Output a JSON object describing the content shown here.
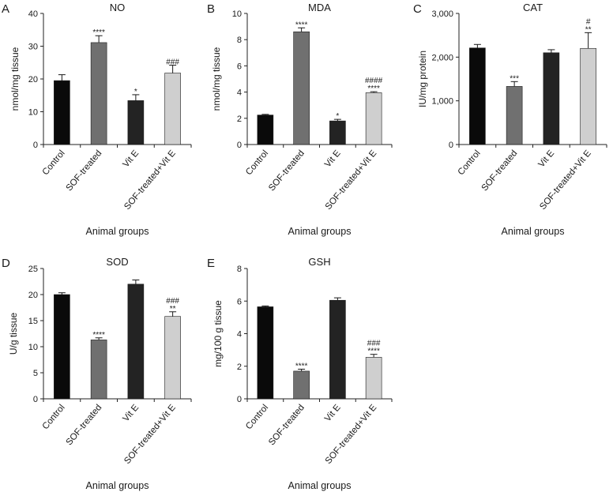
{
  "figure": {
    "x_axis_title": "Animal groups",
    "categories": [
      "Control",
      "SOF-treated",
      "Vit E",
      "SOF-treated+Vit E"
    ],
    "bar_colors": [
      "#0a0a0a",
      "#707070",
      "#232323",
      "#cfcfcf"
    ]
  },
  "chart_data": [
    {
      "type": "bar",
      "panel": "A",
      "title": "NO",
      "ylabel": "nmol/mg tissue",
      "xlabel": "Animal groups",
      "categories": [
        "Control",
        "SOF-treated",
        "Vit E",
        "SOF-treated+Vit E"
      ],
      "values": [
        19.5,
        31.1,
        13.4,
        21.8
      ],
      "errors": [
        1.8,
        2.1,
        1.8,
        2.4
      ],
      "ylim": [
        0,
        40
      ],
      "yticks": [
        0,
        10,
        20,
        30,
        40
      ],
      "ytick_labels": [
        "0",
        "10",
        "20",
        "30",
        "40"
      ],
      "significance": [
        [],
        [
          "****"
        ],
        [
          "*"
        ],
        [
          "###"
        ]
      ]
    },
    {
      "type": "bar",
      "panel": "B",
      "title": "MDA",
      "ylabel": "nmol/mg tissue",
      "xlabel": "Animal groups",
      "categories": [
        "Control",
        "SOF-treated",
        "Vit E",
        "SOF-treated+Vit E"
      ],
      "values": [
        2.25,
        8.6,
        1.8,
        3.95
      ],
      "errors": [
        0.05,
        0.3,
        0.12,
        0.08
      ],
      "ylim": [
        0,
        10
      ],
      "yticks": [
        0,
        2,
        4,
        6,
        8,
        10
      ],
      "ytick_labels": [
        "0",
        "2",
        "4",
        "6",
        "8",
        "10"
      ],
      "significance": [
        [],
        [
          "****"
        ],
        [
          "*"
        ],
        [
          "####",
          "****"
        ]
      ]
    },
    {
      "type": "bar",
      "panel": "C",
      "title": "CAT",
      "ylabel": "IU/mg protein",
      "xlabel": "Animal groups",
      "categories": [
        "Control",
        "SOF-treated",
        "Vit E",
        "SOF-treated+Vit E"
      ],
      "values": [
        2210,
        1330,
        2100,
        2200
      ],
      "errors": [
        80,
        110,
        70,
        360
      ],
      "ylim": [
        0,
        3000
      ],
      "yticks": [
        0,
        1000,
        2000,
        3000
      ],
      "ytick_labels": [
        "0",
        "1,000",
        "2,000",
        "3,000"
      ],
      "significance": [
        [],
        [
          "***"
        ],
        [],
        [
          "#",
          "**"
        ]
      ]
    },
    {
      "type": "bar",
      "panel": "D",
      "title": "SOD",
      "ylabel": "U/g tissue",
      "xlabel": "Animal groups",
      "categories": [
        "Control",
        "SOF-treated",
        "Vit E",
        "SOF-treated+Vit E"
      ],
      "values": [
        20,
        11.3,
        22,
        15.8
      ],
      "errors": [
        0.35,
        0.4,
        0.8,
        0.9
      ],
      "ylim": [
        0,
        25
      ],
      "yticks": [
        0,
        5,
        10,
        15,
        20,
        25
      ],
      "ytick_labels": [
        "0",
        "5",
        "10",
        "15",
        "20",
        "25"
      ],
      "significance": [
        [],
        [
          "****"
        ],
        [],
        [
          "###",
          "**"
        ]
      ]
    },
    {
      "type": "bar",
      "panel": "E",
      "title": "GSH",
      "ylabel": "mg/100 g tissue",
      "xlabel": "Animal groups",
      "categories": [
        "Control",
        "SOF-treated",
        "Vit E",
        "SOF-treated+Vit E"
      ],
      "values": [
        5.65,
        1.7,
        6.05,
        2.55
      ],
      "errors": [
        0.05,
        0.12,
        0.15,
        0.18
      ],
      "ylim": [
        0,
        8
      ],
      "yticks": [
        0,
        2,
        4,
        6,
        8
      ],
      "ytick_labels": [
        "0",
        "2",
        "4",
        "6",
        "8"
      ],
      "significance": [
        [],
        [
          "****"
        ],
        [],
        [
          "###",
          "****"
        ]
      ]
    }
  ]
}
